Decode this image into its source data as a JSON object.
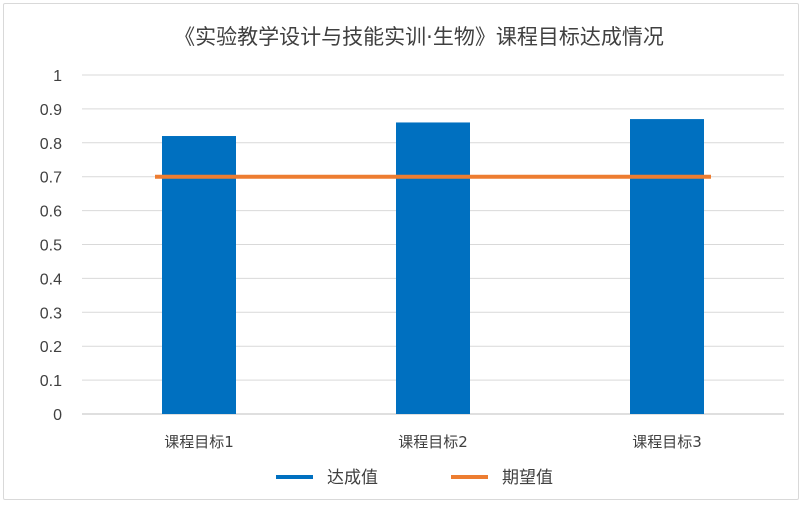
{
  "chart_data": {
    "type": "bar",
    "title": "《实验教学设计与技能实训·生物》课程目标达成情况",
    "categories": [
      "课程目标1",
      "课程目标2",
      "课程目标3"
    ],
    "series": [
      {
        "name": "达成值",
        "type": "bar",
        "color": "#0070c0",
        "values": [
          0.82,
          0.86,
          0.87
        ]
      },
      {
        "name": "期望值",
        "type": "line",
        "color": "#ed7d31",
        "values": [
          0.7,
          0.7,
          0.7
        ]
      }
    ],
    "yticks": [
      "0",
      "0.1",
      "0.2",
      "0.3",
      "0.4",
      "0.5",
      "0.6",
      "0.7",
      "0.8",
      "0.9",
      "1"
    ],
    "ylim": [
      0,
      1
    ],
    "grid": true,
    "legend_position": "bottom"
  }
}
